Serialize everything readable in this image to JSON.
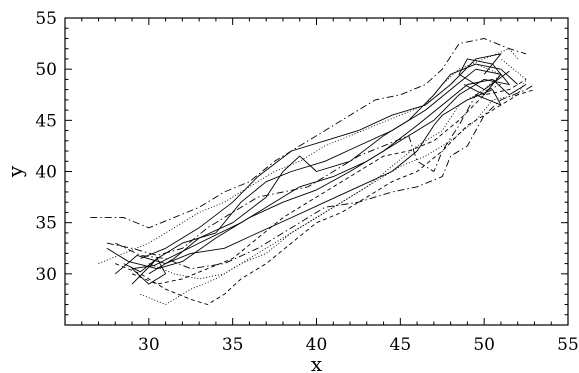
{
  "chart_data": {
    "type": "line",
    "title": "",
    "xlabel": "x",
    "ylabel": "y",
    "xlim": [
      25,
      55
    ],
    "ylim": [
      25,
      55
    ],
    "x_major_ticks": [
      30,
      35,
      40,
      45,
      50,
      55
    ],
    "y_major_ticks": [
      30,
      35,
      40,
      45,
      50,
      55
    ],
    "minor_tick_step": 1,
    "grid": false,
    "legend": "none",
    "line_color": "#000000",
    "series": [
      {
        "style": "solid",
        "points": [
          [
            28.5,
            31
          ],
          [
            29.5,
            30.2
          ],
          [
            30.5,
            31.5
          ],
          [
            31,
            30
          ],
          [
            30,
            29
          ],
          [
            29,
            30.5
          ],
          [
            30.3,
            30.8
          ],
          [
            33,
            33
          ],
          [
            35.5,
            35
          ],
          [
            37,
            36.5
          ],
          [
            39,
            38.5
          ],
          [
            41,
            39.5
          ],
          [
            43,
            41
          ],
          [
            45,
            43
          ],
          [
            47,
            45
          ],
          [
            48.5,
            47.5
          ],
          [
            50,
            49
          ],
          [
            51.5,
            48.5
          ],
          [
            50.5,
            50.5
          ],
          [
            49,
            51
          ],
          [
            48.5,
            49.5
          ],
          [
            50,
            48
          ],
          [
            51.5,
            49.8
          ]
        ]
      },
      {
        "style": "solid",
        "points": [
          [
            27.5,
            32.5
          ],
          [
            28.8,
            31.2
          ],
          [
            30.5,
            30.5
          ],
          [
            32,
            31.2
          ],
          [
            34,
            33.5
          ],
          [
            36,
            35.5
          ],
          [
            38,
            37
          ],
          [
            40,
            38.2
          ],
          [
            42,
            40
          ],
          [
            44,
            42
          ],
          [
            46,
            44.5
          ],
          [
            47.5,
            46.5
          ],
          [
            49,
            48.5
          ],
          [
            50.5,
            49
          ],
          [
            51.5,
            47.5
          ],
          [
            52.5,
            48.5
          ]
        ]
      },
      {
        "style": "solid",
        "points": [
          [
            29,
            29
          ],
          [
            30.5,
            31.5
          ],
          [
            32,
            33
          ],
          [
            34,
            34
          ],
          [
            35.5,
            37
          ],
          [
            37,
            39
          ],
          [
            38.5,
            40
          ],
          [
            40.5,
            41
          ],
          [
            42.5,
            42.5
          ],
          [
            44.5,
            44
          ],
          [
            46.5,
            46
          ],
          [
            48,
            48
          ],
          [
            49.5,
            50
          ],
          [
            51,
            49.5
          ],
          [
            50,
            47.5
          ],
          [
            48.8,
            48.5
          ]
        ]
      },
      {
        "style": "solid",
        "points": [
          [
            29.5,
            31.5
          ],
          [
            31,
            32.5
          ],
          [
            33,
            34.5
          ],
          [
            35,
            37
          ],
          [
            36.5,
            39.5
          ],
          [
            38.5,
            42
          ],
          [
            40.5,
            43
          ],
          [
            42.5,
            44
          ],
          [
            44.5,
            45.5
          ],
          [
            46.5,
            46.5
          ],
          [
            48,
            48.5
          ],
          [
            49.5,
            51
          ],
          [
            51,
            51.5
          ],
          [
            50,
            49.5
          ]
        ]
      },
      {
        "style": "solid",
        "points": [
          [
            28,
            30
          ],
          [
            29.3,
            31.8
          ],
          [
            31,
            31
          ],
          [
            32.5,
            32
          ],
          [
            34.5,
            32.5
          ],
          [
            36.5,
            34
          ],
          [
            38.5,
            35.5
          ],
          [
            40.5,
            37
          ],
          [
            42.5,
            38.5
          ],
          [
            44.5,
            40
          ],
          [
            46,
            42
          ],
          [
            47,
            44.5
          ],
          [
            47.5,
            45.5
          ],
          [
            49,
            47
          ],
          [
            50.5,
            48
          ],
          [
            51,
            46.5
          ],
          [
            49.5,
            47.5
          ]
        ]
      },
      {
        "style": "solid",
        "points": [
          [
            30,
            30
          ],
          [
            31.5,
            31.5
          ],
          [
            33,
            33.5
          ],
          [
            35,
            35
          ],
          [
            37,
            37.5
          ],
          [
            38,
            40
          ],
          [
            39,
            41.5
          ],
          [
            40,
            40
          ],
          [
            42,
            41
          ],
          [
            44,
            43.5
          ],
          [
            45.5,
            45
          ],
          [
            47,
            47.5
          ],
          [
            48,
            49.5
          ],
          [
            49.5,
            50.5
          ],
          [
            51,
            50
          ],
          [
            52,
            48.5
          ]
        ]
      },
      {
        "style": "dashdot",
        "points": [
          [
            26.5,
            35.5
          ],
          [
            28.5,
            35.5
          ],
          [
            30,
            34.5
          ],
          [
            31.5,
            35.5
          ],
          [
            33,
            36.5
          ],
          [
            34.5,
            38
          ],
          [
            36,
            39
          ],
          [
            37.5,
            41
          ],
          [
            39,
            42.5
          ],
          [
            40.5,
            44
          ],
          [
            42,
            45.5
          ],
          [
            43.5,
            47
          ],
          [
            45,
            47.5
          ],
          [
            46.5,
            48.5
          ],
          [
            47.5,
            50
          ],
          [
            48.5,
            52.5
          ],
          [
            50,
            53
          ],
          [
            51.5,
            52
          ],
          [
            52.5,
            51.5
          ]
        ]
      },
      {
        "style": "dashdot",
        "points": [
          [
            28,
            33
          ],
          [
            29.5,
            31.8
          ],
          [
            31,
            31.5
          ],
          [
            32.5,
            30.5
          ],
          [
            34.5,
            31
          ],
          [
            36.5,
            32.5
          ],
          [
            38.5,
            34.5
          ],
          [
            40.5,
            36.5
          ],
          [
            42.5,
            37
          ],
          [
            44.5,
            38
          ],
          [
            46,
            38.5
          ],
          [
            47.5,
            39.5
          ],
          [
            48,
            41.5
          ],
          [
            49,
            42.5
          ],
          [
            50,
            45.5
          ],
          [
            51,
            47
          ],
          [
            52.5,
            48
          ],
          [
            53,
            48.5
          ]
        ]
      },
      {
        "style": "dashdot",
        "points": [
          [
            27.5,
            33
          ],
          [
            29,
            32.5
          ],
          [
            30.5,
            31.8
          ],
          [
            32,
            32.5
          ],
          [
            33.5,
            34.5
          ],
          [
            35,
            36
          ],
          [
            36.5,
            37.5
          ],
          [
            38,
            38
          ],
          [
            39.5,
            38.5
          ],
          [
            41,
            40
          ],
          [
            42.5,
            41.5
          ],
          [
            44,
            42.5
          ],
          [
            45.5,
            43.5
          ],
          [
            46,
            41
          ],
          [
            47,
            40
          ],
          [
            47.5,
            42
          ],
          [
            48.5,
            44.5
          ],
          [
            49.5,
            47.5
          ],
          [
            51,
            48.5
          ]
        ]
      },
      {
        "style": "dashed",
        "points": [
          [
            28,
            31
          ],
          [
            29.5,
            30
          ],
          [
            31,
            28.5
          ],
          [
            32.5,
            27.5
          ],
          [
            33.5,
            27
          ],
          [
            34.5,
            28
          ],
          [
            35.5,
            29.5
          ],
          [
            37,
            31
          ],
          [
            38.5,
            33
          ],
          [
            40,
            35
          ],
          [
            41.5,
            36
          ],
          [
            43,
            37.5
          ],
          [
            44.5,
            39
          ],
          [
            46,
            40
          ],
          [
            47.5,
            42
          ],
          [
            49,
            44.5
          ],
          [
            50.5,
            46
          ],
          [
            52,
            47.5
          ],
          [
            53,
            48
          ]
        ]
      },
      {
        "style": "dashed",
        "points": [
          [
            29,
            30
          ],
          [
            30.5,
            29
          ],
          [
            32,
            29.5
          ],
          [
            33.5,
            30.5
          ],
          [
            35,
            31.5
          ],
          [
            36.5,
            33.5
          ],
          [
            38,
            35.5
          ],
          [
            39.5,
            37
          ],
          [
            41,
            38.5
          ],
          [
            42.5,
            40
          ],
          [
            44,
            41.5
          ],
          [
            45.5,
            42
          ],
          [
            47,
            43
          ],
          [
            48.5,
            45
          ],
          [
            50,
            47.5
          ],
          [
            51.5,
            48
          ],
          [
            52.5,
            49
          ]
        ]
      },
      {
        "style": "dotted",
        "points": [
          [
            30,
            31
          ],
          [
            31.5,
            30
          ],
          [
            33,
            29.5
          ],
          [
            34.5,
            30
          ],
          [
            36,
            31.5
          ],
          [
            37.5,
            33
          ],
          [
            39,
            34.5
          ],
          [
            40.5,
            36
          ],
          [
            42,
            37.5
          ],
          [
            43.5,
            39
          ],
          [
            45,
            40.5
          ],
          [
            46.5,
            41.5
          ],
          [
            48,
            43
          ],
          [
            49.5,
            45
          ],
          [
            50.5,
            47
          ],
          [
            52,
            47.5
          ],
          [
            52.5,
            49
          ],
          [
            51,
            51
          ]
        ]
      },
      {
        "style": "dotted",
        "points": [
          [
            27,
            31
          ],
          [
            28.5,
            32
          ],
          [
            30,
            33
          ],
          [
            31.5,
            34.5
          ],
          [
            33,
            36
          ],
          [
            34.5,
            37
          ],
          [
            36,
            38.5
          ],
          [
            37.5,
            40
          ],
          [
            39,
            41
          ],
          [
            40.5,
            42.5
          ],
          [
            42,
            43.5
          ],
          [
            43.5,
            44.5
          ],
          [
            45,
            45.5
          ],
          [
            46.5,
            46.5
          ],
          [
            47.5,
            48.5
          ],
          [
            48.5,
            50
          ],
          [
            50,
            51
          ],
          [
            51.5,
            52
          ],
          [
            52,
            51
          ]
        ]
      },
      {
        "style": "dotted",
        "points": [
          [
            29.5,
            28
          ],
          [
            31,
            27
          ],
          [
            32.5,
            28.5
          ],
          [
            34,
            29.5
          ],
          [
            35.5,
            31
          ],
          [
            37,
            32
          ],
          [
            38.5,
            34
          ],
          [
            40,
            35.5
          ],
          [
            41.5,
            37
          ],
          [
            43,
            38.5
          ],
          [
            44.5,
            40.5
          ],
          [
            46,
            42.5
          ],
          [
            47.5,
            44
          ],
          [
            48.5,
            46.5
          ],
          [
            50,
            48
          ],
          [
            51,
            49.5
          ],
          [
            49.5,
            50.5
          ]
        ]
      }
    ]
  }
}
